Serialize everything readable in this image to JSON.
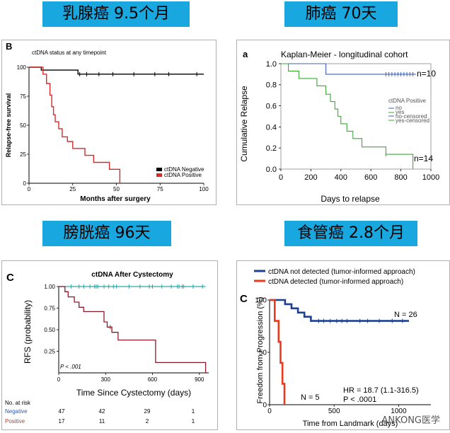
{
  "banners": {
    "breast": "乳腺癌 9.5个月",
    "lung": "肺癌 70天",
    "bladder": "膀胱癌 96天",
    "esophageal": "食管癌 2.8个月"
  },
  "watermark": "ANKONG医学",
  "chart_data": [
    {
      "type": "line",
      "panel_label": "B",
      "subtitle": "ctDNA status at any timepoint",
      "xlabel": "Months after surgery",
      "ylabel": "Relapse-free survival",
      "xlim": [
        0,
        100
      ],
      "ylim": [
        0,
        100
      ],
      "xticks": [
        "0",
        "25",
        "50",
        "75",
        "100"
      ],
      "yticks": [
        "0",
        "25",
        "50",
        "75",
        "100"
      ],
      "legend": [
        "ctDNA Negative",
        "ctDNA Positive"
      ],
      "series": [
        {
          "name": "ctDNA Negative",
          "color": "#000000",
          "x": [
            0,
            7,
            7,
            28,
            28,
            100
          ],
          "y": [
            100,
            100,
            97.5,
            97.5,
            94,
            94
          ],
          "censor_x": [
            29,
            33,
            40,
            48,
            60,
            72,
            80,
            96
          ]
        },
        {
          "name": "ctDNA Positive",
          "color": "#d62a2a",
          "x": [
            0,
            8,
            8,
            10,
            10,
            12,
            12,
            13,
            13,
            14,
            14,
            15,
            15,
            17,
            17,
            19,
            19,
            22,
            22,
            25,
            25,
            32,
            32,
            37,
            37,
            46,
            46,
            52,
            52
          ],
          "y": [
            100,
            100,
            94,
            94,
            86,
            86,
            76,
            76,
            66,
            66,
            59,
            59,
            53,
            53,
            47,
            47,
            40,
            40,
            36,
            36,
            30,
            30,
            24,
            24,
            18,
            18,
            12,
            12,
            0
          ],
          "censor_x": []
        }
      ]
    },
    {
      "type": "line",
      "panel_label": "a",
      "title": "Kaplan-Meier - longitudinal cohort",
      "xlabel": "Days to relapse",
      "ylabel": "Cumulative Relapse",
      "xlim": [
        0,
        1000
      ],
      "ylim": [
        0,
        1
      ],
      "xticks": [
        "0",
        "200",
        "400",
        "600",
        "800",
        "1000"
      ],
      "yticks": [
        "0.0",
        "0.2",
        "0.4",
        "0.6",
        "0.8",
        "1.0"
      ],
      "legend_title": "ctDNA Positive",
      "legend": [
        "no",
        "yes",
        "no-censored",
        "yes-censored"
      ],
      "annotations": [
        "n=10",
        "n=14"
      ],
      "series": [
        {
          "name": "no",
          "color": "#4060b0",
          "x": [
            0,
            300,
            300,
            900
          ],
          "y": [
            1.0,
            1.0,
            0.9,
            0.9
          ],
          "censor_x": [
            700,
            720,
            740,
            760,
            780,
            800,
            820,
            840,
            860,
            880
          ]
        },
        {
          "name": "yes",
          "color": "#3aaa35",
          "x": [
            0,
            50,
            50,
            120,
            120,
            240,
            240,
            300,
            300,
            330,
            330,
            360,
            360,
            380,
            380,
            400,
            400,
            440,
            440,
            480,
            480,
            540,
            540,
            700,
            700,
            880,
            880
          ],
          "y": [
            1.0,
            1.0,
            0.93,
            0.93,
            0.86,
            0.86,
            0.79,
            0.79,
            0.71,
            0.71,
            0.64,
            0.64,
            0.57,
            0.57,
            0.5,
            0.5,
            0.43,
            0.43,
            0.36,
            0.36,
            0.29,
            0.29,
            0.21,
            0.21,
            0.14,
            0.14,
            0.0
          ],
          "censor_x": [
            700
          ]
        }
      ]
    },
    {
      "type": "line",
      "panel_label": "C",
      "title": "ctDNA After Cystectomy",
      "xlabel": "Time Since Cystectomy (days)",
      "ylabel": "RFS (probability)",
      "xlim": [
        0,
        960
      ],
      "ylim": [
        0,
        1.0
      ],
      "xticks": [
        "0",
        "300",
        "600",
        "900"
      ],
      "yticks": [
        "0.25",
        "0.50",
        "0.75",
        "1.00"
      ],
      "pvalue": "P < .001",
      "risk_table": {
        "title": "No. at risk",
        "rows": [
          {
            "label": "Negative",
            "color": "#2a5db0",
            "values": [
              "47",
              "42",
              "29",
              "1"
            ]
          },
          {
            "label": "Positive",
            "color": "#c0392b",
            "values": [
              "17",
              "11",
              "2",
              "1"
            ]
          }
        ]
      },
      "series": [
        {
          "name": "Negative",
          "color": "#2aa8a8",
          "x": [
            0,
            940
          ],
          "y": [
            1.0,
            1.0
          ],
          "censor_x": [
            80,
            130,
            160,
            200,
            230,
            240,
            250,
            290,
            320,
            350,
            370,
            450,
            520,
            580,
            600,
            660,
            720,
            760,
            770,
            790,
            800,
            860,
            920
          ]
        },
        {
          "name": "Positive",
          "color": "#8b1a2b",
          "x": [
            0,
            40,
            40,
            60,
            60,
            100,
            100,
            130,
            130,
            160,
            160,
            290,
            290,
            310,
            310,
            340,
            340,
            380,
            380,
            620,
            620,
            940,
            940
          ],
          "y": [
            1.0,
            1.0,
            0.94,
            0.94,
            0.88,
            0.88,
            0.82,
            0.82,
            0.76,
            0.76,
            0.71,
            0.71,
            0.59,
            0.59,
            0.53,
            0.53,
            0.47,
            0.47,
            0.38,
            0.38,
            0.12,
            0.12,
            0.0
          ],
          "censor_x": [
            330
          ]
        }
      ]
    },
    {
      "type": "line",
      "panel_label": "C",
      "xlabel": "Time from Landmark (days)",
      "ylabel": "Freedom from Progression (%)",
      "xlim": [
        0,
        1250
      ],
      "ylim": [
        0,
        100
      ],
      "xticks": [
        "0",
        "500",
        "1000"
      ],
      "yticks": [
        "0",
        "50",
        "100"
      ],
      "legend": [
        "ctDNA not detected (tumor-informed approach)",
        "ctDNA detected (tumor-informed approach)"
      ],
      "annotations": [
        "N = 26",
        "N = 5",
        "HR = 18.7 (1.1-316.5)",
        "P < .0001"
      ],
      "series": [
        {
          "name": "ctDNA not detected (tumor-informed approach)",
          "color": "#1f3f8f",
          "x": [
            0,
            120,
            120,
            170,
            170,
            220,
            220,
            270,
            270,
            320,
            320,
            1080
          ],
          "y": [
            100,
            100,
            96,
            96,
            92,
            92,
            88,
            88,
            84,
            84,
            80,
            80
          ],
          "censor_x": [
            380,
            420,
            470,
            520,
            560,
            600,
            700,
            760,
            850,
            950,
            1030
          ]
        },
        {
          "name": "ctDNA detected (tumor-informed approach)",
          "color": "#e83a1e",
          "x": [
            0,
            40,
            40,
            70,
            70,
            85,
            85,
            100,
            100,
            115,
            115
          ],
          "y": [
            100,
            100,
            80,
            80,
            60,
            60,
            40,
            40,
            20,
            20,
            0
          ],
          "censor_x": []
        }
      ]
    }
  ]
}
